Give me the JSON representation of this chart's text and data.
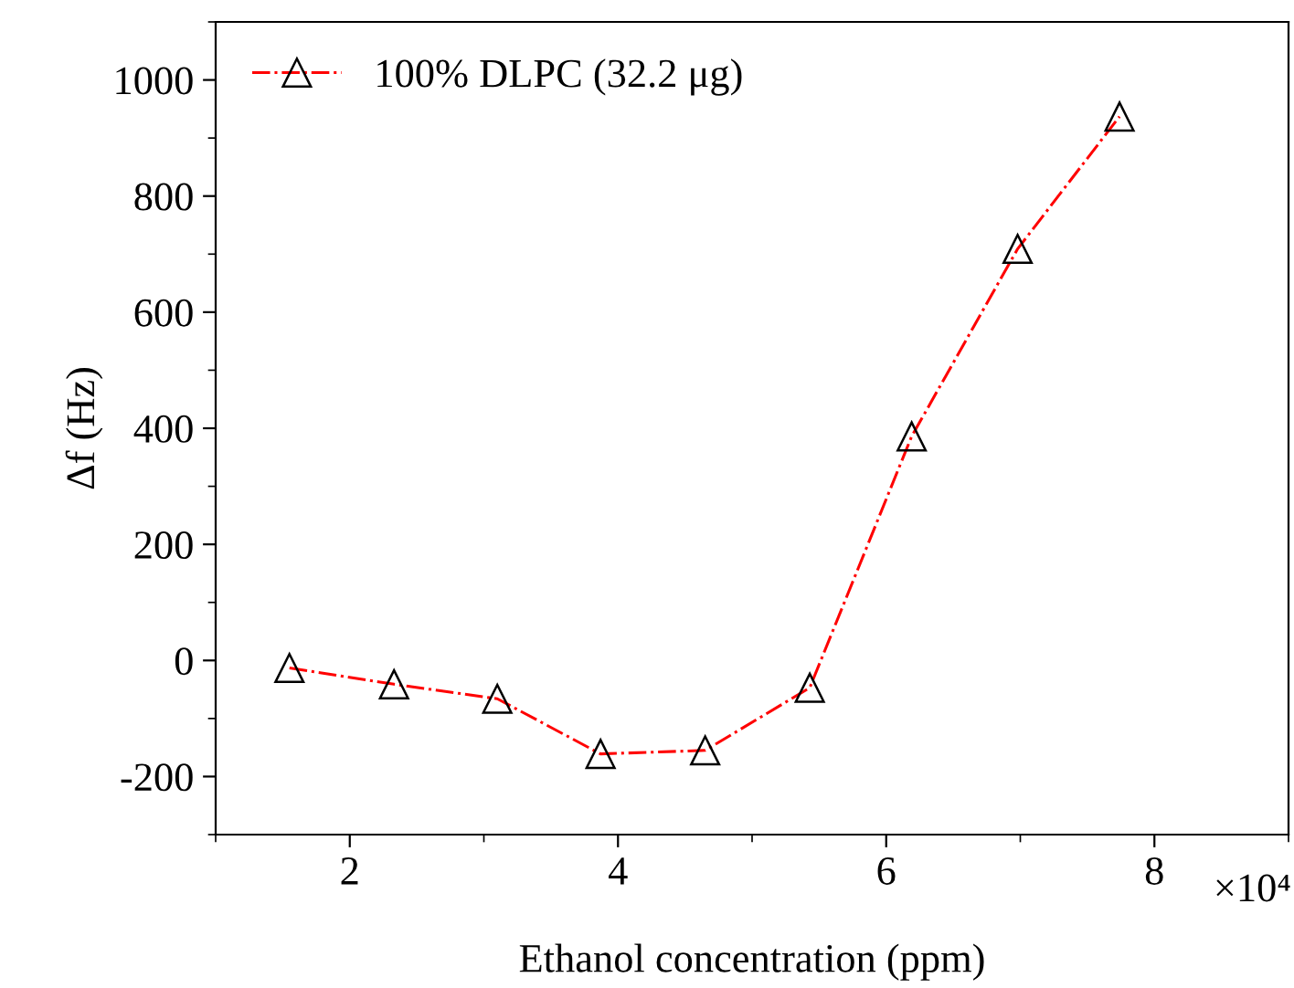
{
  "chart_data": {
    "type": "line",
    "xlabel": "Ethanol concentration (ppm)",
    "ylabel": "Δf (Hz)",
    "x": [
      1.55,
      2.33,
      3.1,
      3.87,
      4.65,
      5.43,
      6.19,
      6.98,
      7.74
    ],
    "series": [
      {
        "name": "100% DLPC (32.2 μg)",
        "color": "#ff0000",
        "values": [
          -13,
          -41,
          -66,
          -161,
          -155,
          -47,
          386,
          709,
          937
        ]
      }
    ],
    "xlim": [
      1,
      9
    ],
    "xticks": [
      2,
      4,
      6,
      8
    ],
    "ylim": [
      -300,
      1100
    ],
    "yticks": [
      {
        "value": -200,
        "label": "-200"
      },
      0,
      200,
      400,
      600,
      800,
      1000
    ],
    "annotations": [
      "×10⁴"
    ],
    "marker": "triangle",
    "line_style": "dashdot",
    "legend": "top left",
    "grid": false
  }
}
